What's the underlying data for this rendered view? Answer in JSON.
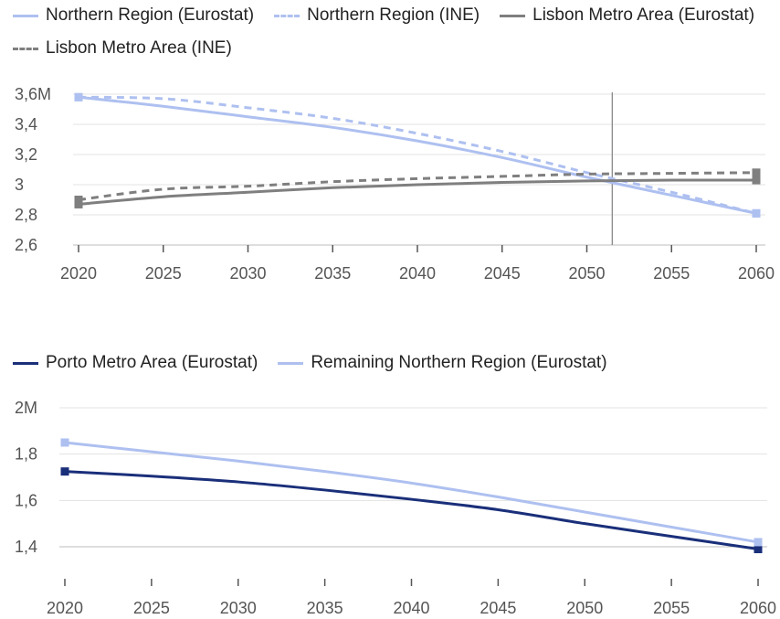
{
  "chart_data": [
    {
      "type": "line",
      "x": [
        2020,
        2025,
        2030,
        2035,
        2040,
        2045,
        2050,
        2055,
        2060
      ],
      "x_tick_labels": [
        "2020",
        "2025",
        "2030",
        "2035",
        "2040",
        "2045",
        "2050",
        "2055",
        "2060"
      ],
      "y_tick_labels": [
        "2,6",
        "2,8",
        "3",
        "3,2",
        "3,4",
        "3,6M"
      ],
      "y_ticks": [
        2.6,
        2.8,
        3.0,
        3.2,
        3.4,
        3.6
      ],
      "ylim": [
        2.6,
        3.6
      ],
      "xlim": [
        2020,
        2060
      ],
      "grid": true,
      "legend_position": "top",
      "crosshair_x": 2051.5,
      "series": [
        {
          "name": "Northern Region (Eurostat)",
          "color": "#aec0f0",
          "dashed": false,
          "values": [
            3.58,
            3.52,
            3.45,
            3.38,
            3.29,
            3.18,
            3.05,
            2.93,
            2.81
          ]
        },
        {
          "name": "Northern Region (INE)",
          "color": "#aec0f0",
          "dashed": true,
          "values": [
            3.58,
            3.57,
            3.51,
            3.44,
            3.34,
            3.22,
            3.08,
            2.95,
            2.81
          ]
        },
        {
          "name": "Lisbon Metro Area (Eurostat)",
          "color": "#7f7f7f",
          "dashed": false,
          "values": [
            2.87,
            2.92,
            2.95,
            2.98,
            3.0,
            3.015,
            3.025,
            3.03,
            3.03
          ]
        },
        {
          "name": "Lisbon Metro Area (INE)",
          "color": "#7f7f7f",
          "dashed": true,
          "values": [
            2.9,
            2.97,
            2.99,
            3.02,
            3.04,
            3.055,
            3.07,
            3.075,
            3.08
          ]
        }
      ]
    },
    {
      "type": "line",
      "x": [
        2020,
        2025,
        2030,
        2035,
        2040,
        2045,
        2050,
        2055,
        2060
      ],
      "x_tick_labels": [
        "2020",
        "2025",
        "2030",
        "2035",
        "2040",
        "2045",
        "2050",
        "2055",
        "2060"
      ],
      "y_tick_labels": [
        "1,4",
        "1,6",
        "1,8",
        "2M"
      ],
      "y_ticks": [
        1.4,
        1.6,
        1.8,
        2.0
      ],
      "ylim": [
        1.4,
        2.0
      ],
      "xlim": [
        2020,
        2060
      ],
      "grid": true,
      "legend_position": "top",
      "series": [
        {
          "name": "Porto Metro Area (Eurostat)",
          "color": "#1a2f7a",
          "dashed": false,
          "values": [
            1.725,
            1.705,
            1.68,
            1.645,
            1.605,
            1.56,
            1.5,
            1.445,
            1.39
          ]
        },
        {
          "name": "Remaining Northern Region (Eurostat)",
          "color": "#aec0f0",
          "dashed": false,
          "values": [
            1.85,
            1.81,
            1.77,
            1.725,
            1.675,
            1.615,
            1.55,
            1.485,
            1.42
          ]
        }
      ]
    }
  ]
}
